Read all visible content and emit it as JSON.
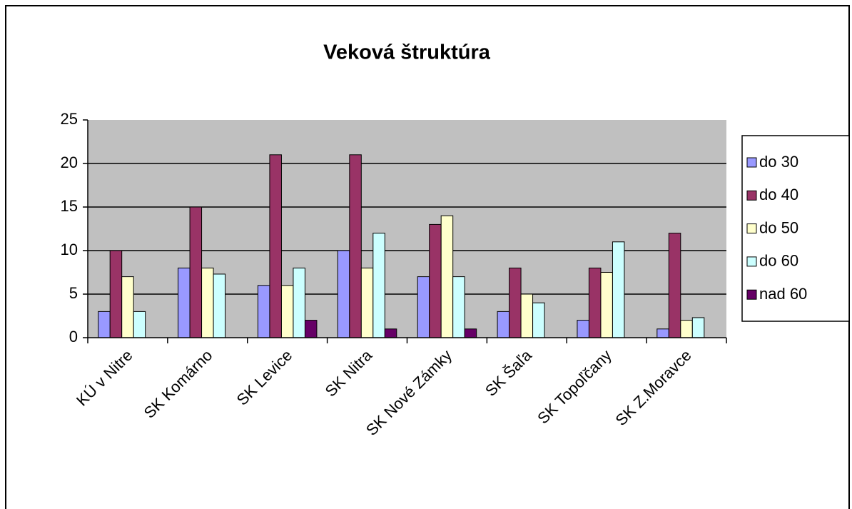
{
  "chart_data": {
    "type": "bar",
    "title": "Veková štruktúra",
    "categories": [
      "KÚ v Nitre",
      "SK Komárno",
      "SK Levice",
      "SK Nitra",
      "SK Nové Zámky",
      "SK Šaľa",
      "SK Topoľčany",
      "SK Z.Moravce"
    ],
    "series": [
      {
        "name": "do 30",
        "color": "#9999FF",
        "values": [
          3,
          8,
          6,
          10,
          7,
          3,
          2,
          1
        ]
      },
      {
        "name": "do 40",
        "color": "#993366",
        "values": [
          10,
          15,
          21,
          21,
          13,
          8,
          8,
          12
        ]
      },
      {
        "name": "do 50",
        "color": "#FFFFCC",
        "values": [
          7,
          8,
          6,
          8,
          14,
          5,
          7.5,
          2
        ]
      },
      {
        "name": "do 60",
        "color": "#CCFFFF",
        "values": [
          3,
          7.3,
          8,
          12,
          7,
          4,
          11,
          2.3
        ]
      },
      {
        "name": "nad 60",
        "color": "#660066",
        "values": [
          0,
          0,
          2,
          1,
          1,
          0,
          0,
          0
        ]
      }
    ],
    "ylim": [
      0,
      25
    ],
    "yticks": [
      0,
      5,
      10,
      15,
      20,
      25
    ],
    "grid": true,
    "legend": "right"
  }
}
